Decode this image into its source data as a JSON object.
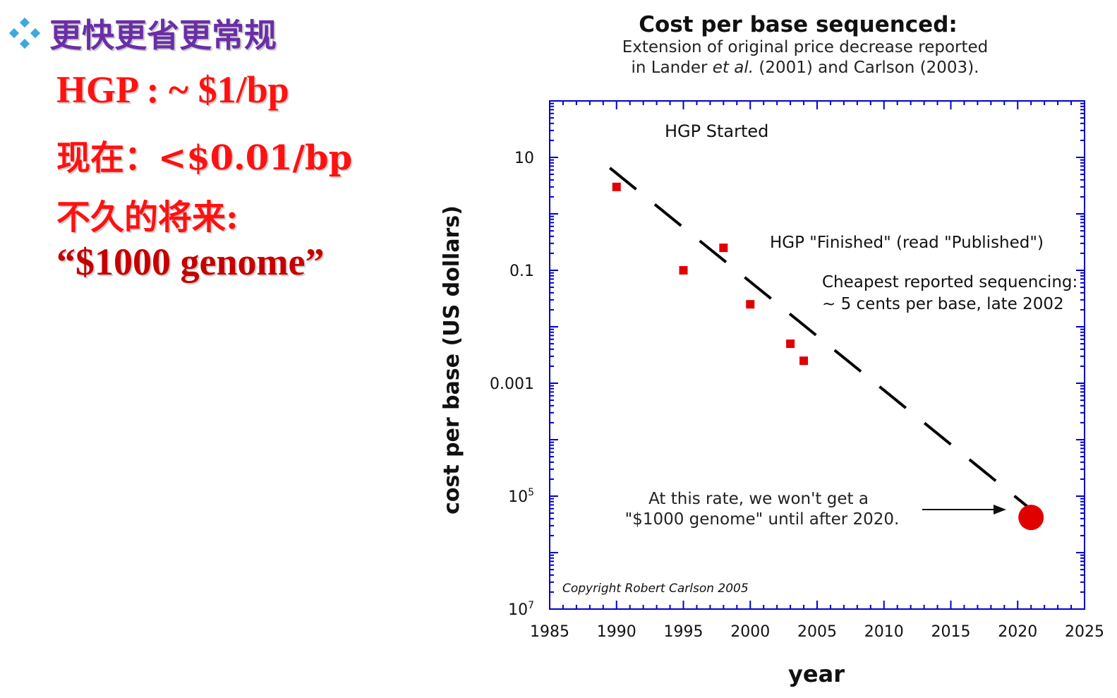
{
  "slide": {
    "heading": "更快更省更常规",
    "lines": [
      "HGP : ~ $1/bp",
      "现在：<$0.01/bp",
      "不久的将来:",
      "“$1000 genome”"
    ],
    "colors": {
      "heading": "#6a2ea6",
      "text": "#ff1111",
      "quote": "#c40000",
      "bullet": "#3ea8e0"
    },
    "bullet_icon": "diamond-bullet-icon"
  },
  "chart_data": {
    "type": "scatter",
    "title": "Cost per base sequenced:",
    "subtitle_line1": "Extension of original price decrease reported",
    "subtitle_line2_pre": "in Lander ",
    "subtitle_line2_em": "et al.",
    "subtitle_line2_post": " (2001) and Carlson (2003).",
    "xlabel": "year",
    "ylabel": "cost per base (US dollars)",
    "x_scale": "linear",
    "y_scale": "log",
    "xlim": [
      1985,
      2025
    ],
    "ylim": [
      1e-07,
      100
    ],
    "x_ticks": [
      "1985",
      "1990",
      "1995",
      "2000",
      "2005",
      "2010",
      "2015",
      "2020",
      "2025"
    ],
    "y_ticks": [
      {
        "value": 10,
        "label": "10"
      },
      {
        "value": 0.1,
        "label": "0.1"
      },
      {
        "value": 0.001,
        "label": "0.001"
      },
      {
        "value": 1e-05,
        "label": "10",
        "exp": "5"
      },
      {
        "value": 1e-07,
        "label": "10",
        "exp": "7"
      }
    ],
    "series": [
      {
        "type": "scatter",
        "color": "#e00000",
        "points": [
          {
            "x": 1990,
            "y": 3
          },
          {
            "x": 1995,
            "y": 0.1
          },
          {
            "x": 1998,
            "y": 0.25
          },
          {
            "x": 2000,
            "y": 0.025
          },
          {
            "x": 2003,
            "y": 0.005
          },
          {
            "x": 2004,
            "y": 0.0025
          }
        ]
      },
      {
        "type": "line",
        "style": "dashed",
        "color": "#000000",
        "points": [
          {
            "x": 1989.5,
            "y": 6.5
          },
          {
            "x": 2023,
            "y": 2.4e-06
          }
        ]
      }
    ],
    "projection": {
      "x": 2021,
      "y": 4.2e-06,
      "color": "#e00000"
    },
    "annotations": {
      "hgp_started": "HGP Started",
      "hgp_finished": "HGP \"Finished\" (read \"Published\")",
      "cheapest_1": "Cheapest reported sequencing:",
      "cheapest_2": "~ 5 cents per base, late 2002",
      "rate_1": "At this rate, we won't get a",
      "rate_2": "\"$1000 genome\" until after 2020.",
      "copyright": "Copyright Robert Carlson 2005"
    },
    "grid": false,
    "frame_color": "#0000cc"
  }
}
